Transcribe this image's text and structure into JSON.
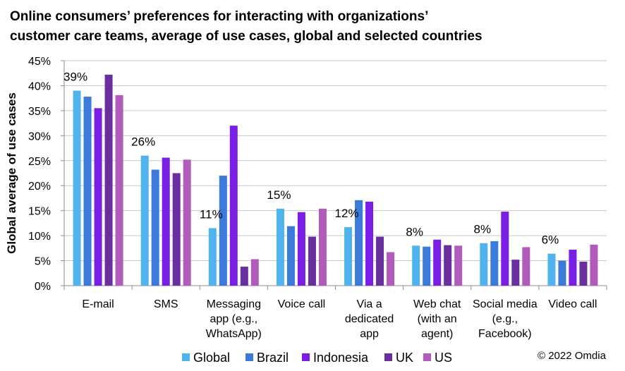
{
  "title_line1": "Online consumers’ preferences for interacting with organizations’",
  "title_line2": "customer care teams, average of use cases, global and selected countries",
  "copyright": "© 2022 Omdia",
  "chart_data": {
    "type": "bar",
    "ylabel": "Global average of use cases",
    "ylim": [
      0,
      45
    ],
    "yticks": [
      "0%",
      "5%",
      "10%",
      "15%",
      "20%",
      "25%",
      "30%",
      "35%",
      "40%",
      "45%"
    ],
    "grid": true,
    "legend_position": "bottom",
    "categories": [
      [
        "E-mail"
      ],
      [
        "SMS"
      ],
      [
        "Messaging",
        "app (e.g.,",
        "WhatsApp)"
      ],
      [
        "Voice call"
      ],
      [
        "Via a",
        "dedicated",
        "app"
      ],
      [
        "Web chat",
        "(with an",
        "agent)"
      ],
      [
        "Social media",
        "(e.g.,",
        "Facebook)"
      ],
      [
        "Video call"
      ]
    ],
    "series": [
      {
        "name": "Global",
        "color": "#4fb3ee",
        "values": [
          39,
          26,
          11.5,
          15.4,
          11.7,
          8,
          8.5,
          6.4
        ]
      },
      {
        "name": "Brazil",
        "color": "#3a7ad9",
        "values": [
          37.8,
          23.2,
          22,
          11.9,
          17.1,
          7.8,
          8.9,
          5
        ]
      },
      {
        "name": "Indonesia",
        "color": "#7a1ee6",
        "values": [
          35.5,
          25.6,
          32,
          14.7,
          16.8,
          9.2,
          14.8,
          7.2
        ]
      },
      {
        "name": "UK",
        "color": "#6b2e9e",
        "values": [
          42.2,
          22.5,
          3.8,
          9.8,
          9.8,
          8.1,
          5.2,
          4.8
        ]
      },
      {
        "name": "US",
        "color": "#b25bbd",
        "values": [
          38.1,
          25.2,
          5.3,
          15.4,
          6.7,
          8,
          7.7,
          8.2
        ]
      }
    ],
    "data_labels": [
      "39%",
      "26%",
      "11%",
      "15%",
      "12%",
      "8%",
      "8%",
      "6%"
    ]
  }
}
